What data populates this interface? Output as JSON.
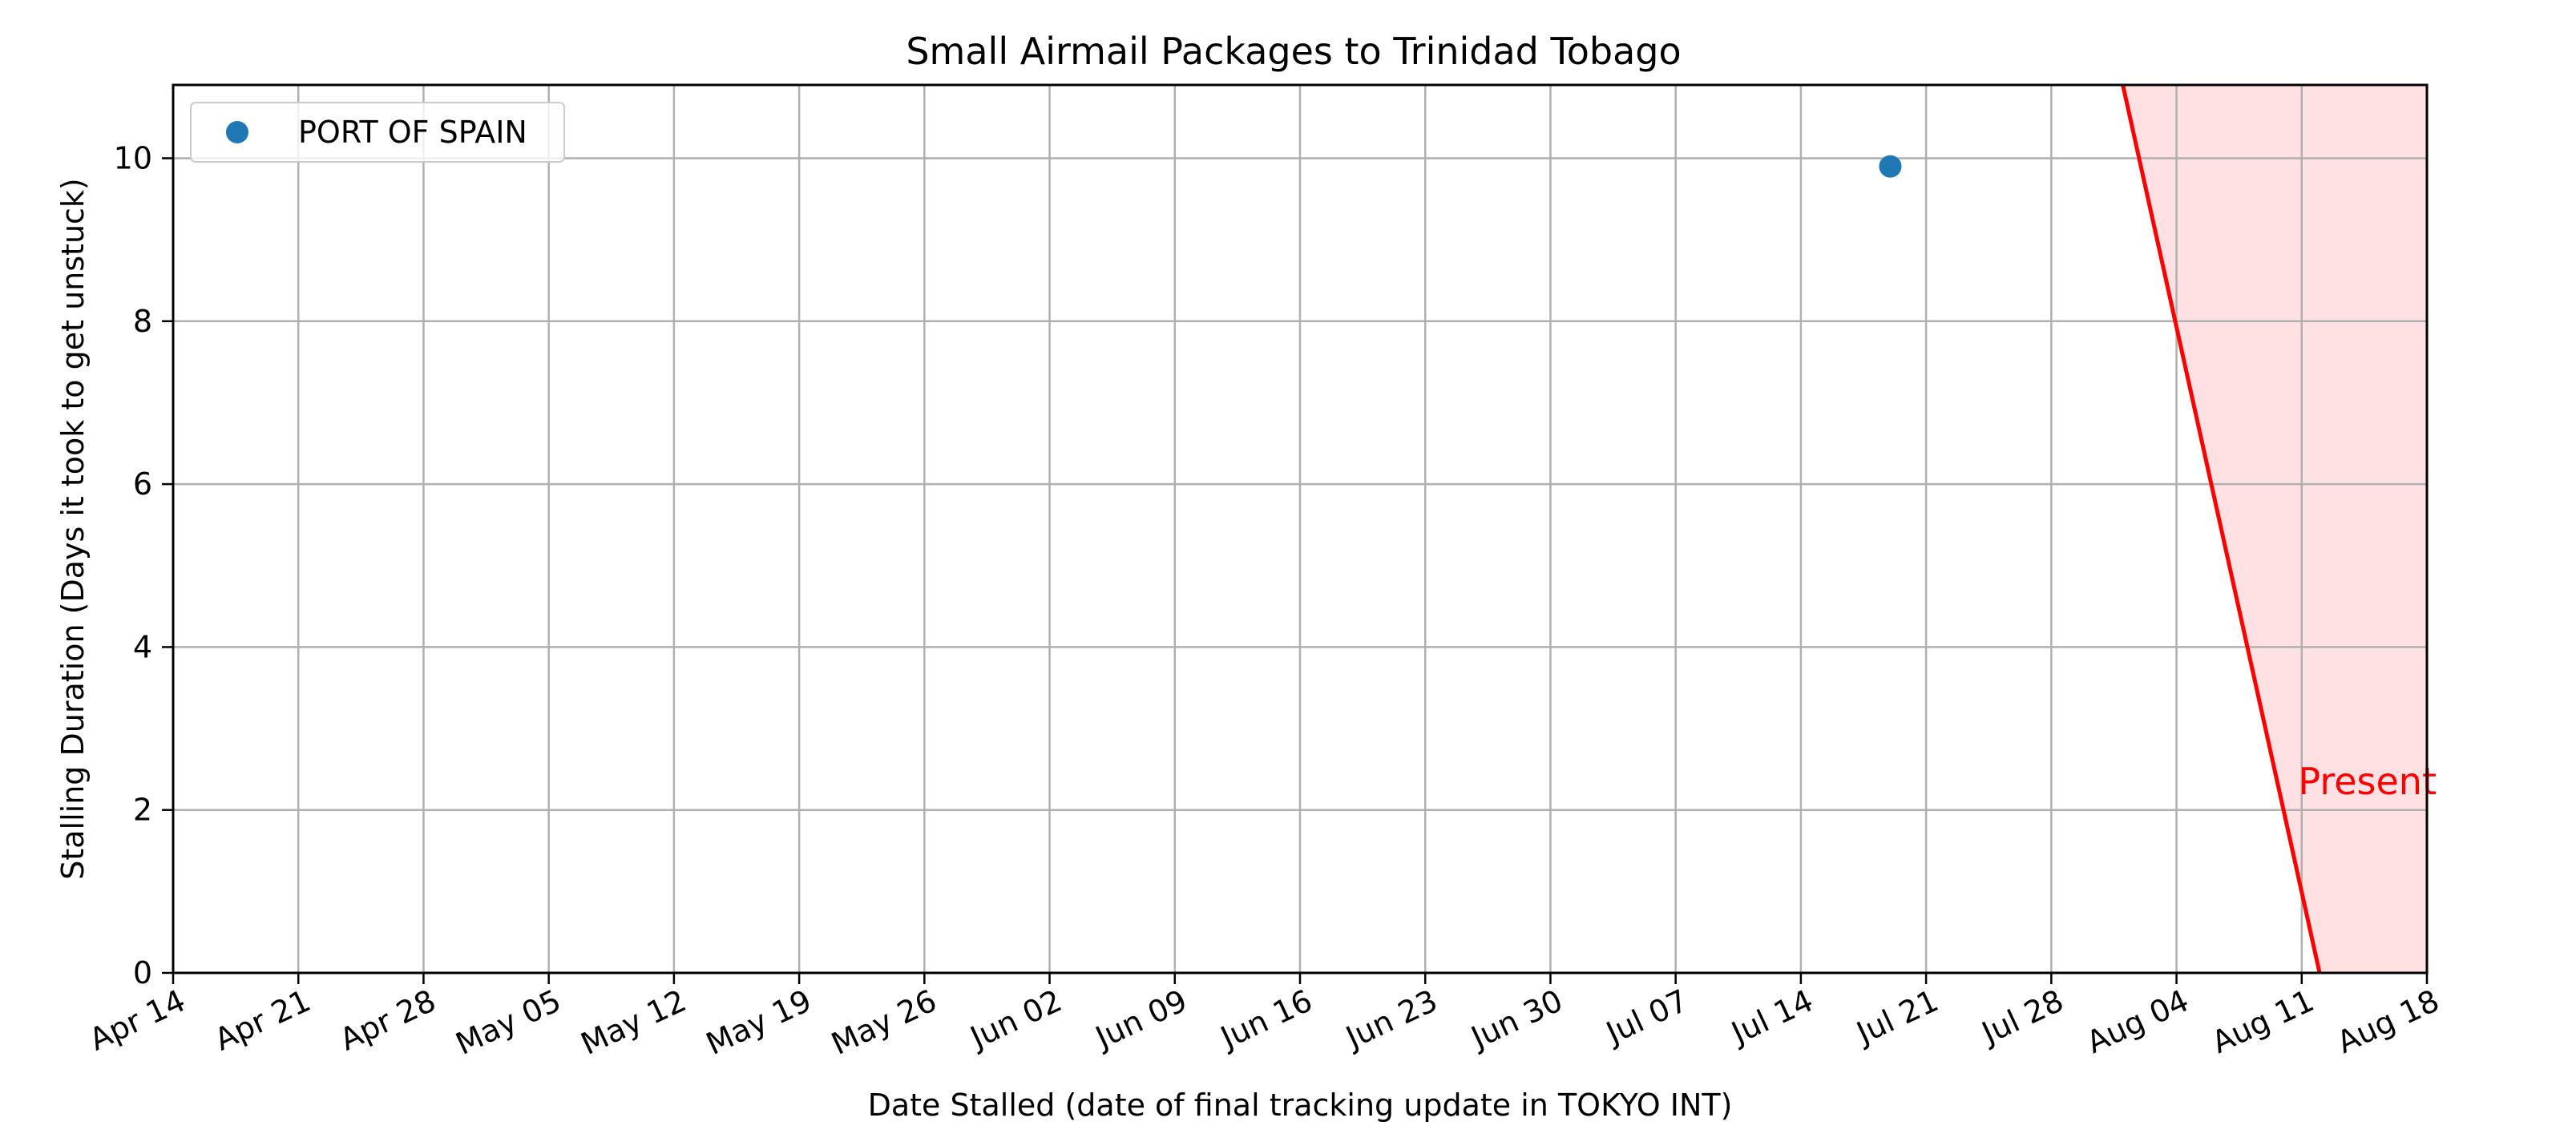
{
  "chart_data": {
    "type": "scatter",
    "title": "Small Airmail Packages to Trinidad Tobago",
    "xlabel": "Date Stalled (date of final tracking update in TOKYO INT)",
    "ylabel": "Stalling Duration (Days it took to get unstuck)",
    "xlim": [
      "2024-04-14",
      "2024-08-18"
    ],
    "ylim": [
      0,
      10.9
    ],
    "x_ticks": [
      "Apr 14",
      "Apr 21",
      "Apr 28",
      "May 05",
      "May 12",
      "May 19",
      "May 26",
      "Jun 02",
      "Jun 09",
      "Jun 16",
      "Jun 23",
      "Jun 30",
      "Jul 07",
      "Jul 14",
      "Jul 21",
      "Jul 28",
      "Aug 04",
      "Aug 11",
      "Aug 18"
    ],
    "y_ticks": [
      "0",
      "2",
      "4",
      "6",
      "8",
      "10"
    ],
    "grid": true,
    "legend": {
      "placement": "top-left",
      "entries": [
        "PORT OF SPAIN"
      ]
    },
    "series": [
      {
        "name": "PORT OF SPAIN",
        "color": "#1f77b4",
        "points": [
          {
            "x": "2024-07-19",
            "y": 9.9
          }
        ]
      }
    ],
    "present_region": {
      "label": "Present",
      "color": "#ff0000",
      "fill_color": "#ffe0e3",
      "line": [
        {
          "x": "2024-08-01",
          "y": 10.9
        },
        {
          "x": "2024-08-12",
          "y": 0
        }
      ]
    }
  }
}
